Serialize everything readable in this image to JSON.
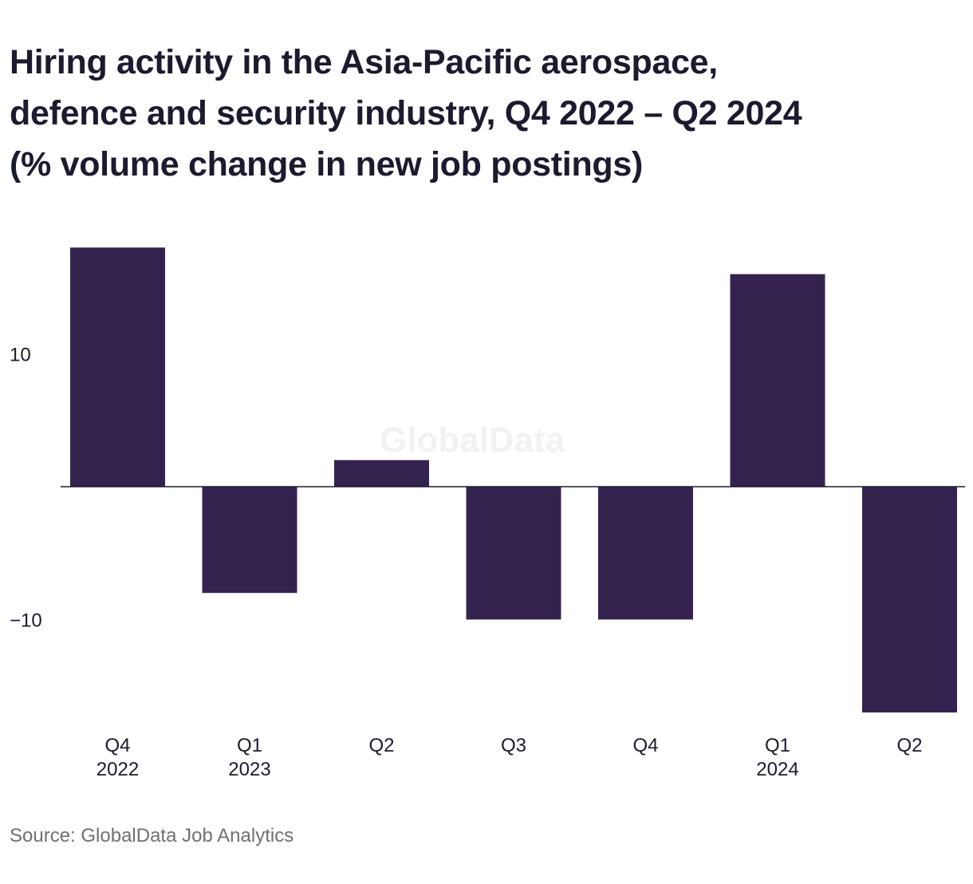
{
  "chart_data": {
    "type": "bar",
    "title_lines": [
      "Hiring activity in the Asia-Pacific aerospace,",
      "defence and security industry, Q4 2022 – Q2 2024",
      "(% volume change in new job postings)"
    ],
    "categories": [
      {
        "line1": "Q4",
        "line2": "2022"
      },
      {
        "line1": "Q1",
        "line2": "2023"
      },
      {
        "line1": "Q2",
        "line2": ""
      },
      {
        "line1": "Q3",
        "line2": ""
      },
      {
        "line1": "Q4",
        "line2": ""
      },
      {
        "line1": "Q1",
        "line2": "2024"
      },
      {
        "line1": "Q2",
        "line2": ""
      }
    ],
    "values": [
      18,
      -8,
      2,
      -10,
      -10,
      16,
      -17
    ],
    "yticks": [
      {
        "value": 10,
        "label": "10"
      },
      {
        "value": -10,
        "label": "−10"
      }
    ],
    "ylim": [
      -17.5,
      18.5
    ],
    "grid": false,
    "bar_color": "#35234f",
    "axis_color": "#1b1b2f",
    "watermark": "GlobalData",
    "source": "Source: GlobalData Job Analytics"
  }
}
